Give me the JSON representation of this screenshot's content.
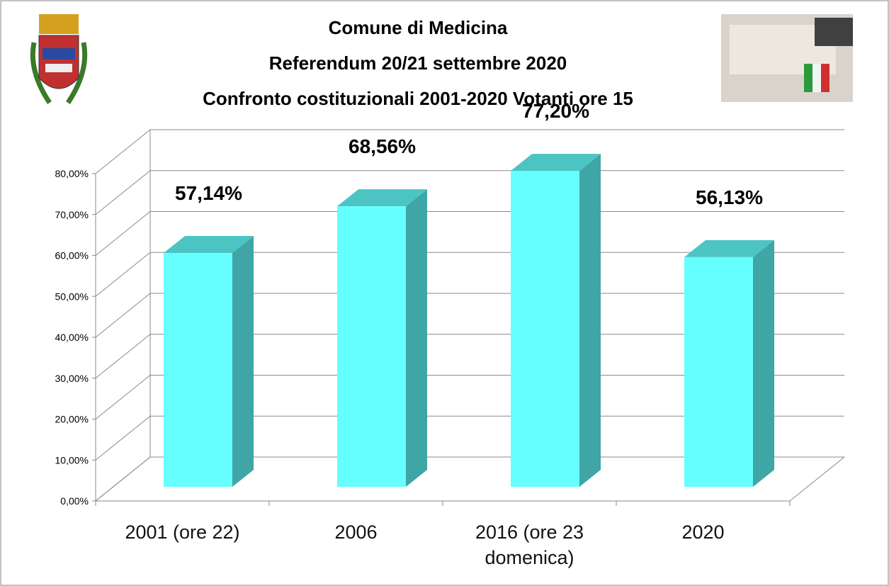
{
  "chart_data": {
    "type": "bar3d",
    "title": [
      "Comune di Medicina",
      "Referendum 20/21 settembre 2020",
      "Confronto costituzionali 2001-2020 Votanti ore 15"
    ],
    "categories": [
      "2001 (ore 22)",
      "2006",
      "2016 (ore 23 domenica)",
      "2020"
    ],
    "values": [
      57.14,
      68.56,
      77.2,
      56.13
    ],
    "value_labels": [
      "57,14%",
      "68,56%",
      "77,20%",
      "56,13%"
    ],
    "color": "#66ffff",
    "ylim": [
      0,
      80
    ],
    "yticks": [
      {
        "value": 0,
        "label": "0,00%"
      },
      {
        "value": 10,
        "label": "10,00%"
      },
      {
        "value": 20,
        "label": "20,00%"
      },
      {
        "value": 30,
        "label": "30,00%"
      },
      {
        "value": 40,
        "label": "40,00%"
      },
      {
        "value": 50,
        "label": "50,00%"
      },
      {
        "value": 60,
        "label": "60,00%"
      },
      {
        "value": 70,
        "label": "70,00%"
      },
      {
        "value": 80,
        "label": "80,00%"
      }
    ],
    "grid": true
  }
}
